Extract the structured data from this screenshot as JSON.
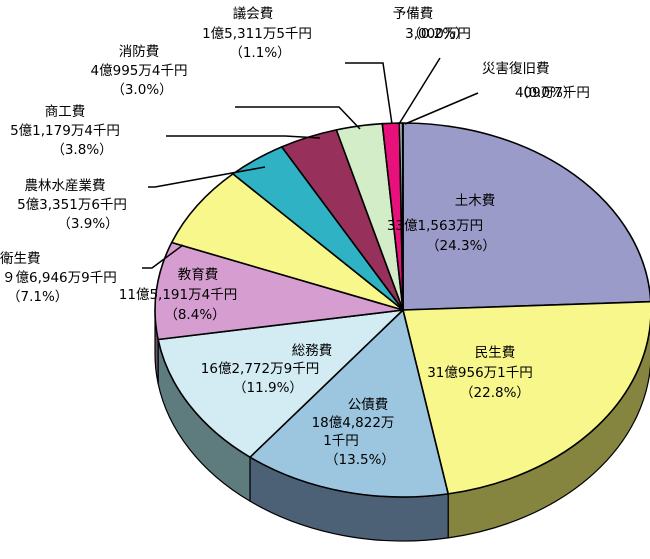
{
  "chart_data": {
    "type": "pie",
    "style": "3d",
    "slices": [
      {
        "name": "土木費",
        "amount": "33億1,563万円",
        "percent_label": "（24.3%）",
        "value": 24.3,
        "color": "#9b9bc9",
        "side_color": "#55557a"
      },
      {
        "name": "民生費",
        "amount": "31億956万1千円",
        "percent_label": "（22.8%）",
        "value": 22.8,
        "color": "#f7f78c",
        "side_color": "#85853f"
      },
      {
        "name": "公債費",
        "amount": "18億4,822万",
        "amount_line2": "1千円",
        "percent_label": "（13.5%）",
        "value": 13.5,
        "color": "#9cc6e0",
        "side_color": "#4d6176"
      },
      {
        "name": "総務費",
        "amount": "16億2,772万9千円",
        "percent_label": "（11.9%）",
        "value": 11.9,
        "color": "#d3ecf4",
        "side_color": "#5e7b7e"
      },
      {
        "name": "教育費",
        "amount": "11億5,191万4千円",
        "percent_label": "（8.4%）",
        "value": 8.4,
        "color": "#d69ed0",
        "side_color": "#6e4f6c"
      },
      {
        "name": "衛生費",
        "amount": "９億6,946万9千円",
        "percent_label": "（7.1%）",
        "value": 7.1,
        "color": "#f7f78c",
        "side_color": "#85853f"
      },
      {
        "name": "農林水産業費",
        "amount": "5億3,351万6千円",
        "percent_label": "（3.9%）",
        "value": 3.9,
        "color": "#2fb3c4",
        "side_color": "#1c6b75"
      },
      {
        "name": "商工費",
        "amount": "5億1,179万4千円",
        "percent_label": "（3.8%）",
        "value": 3.8,
        "color": "#98305c",
        "side_color": "#5c1d38"
      },
      {
        "name": "消防費",
        "amount": "4億995万4千円",
        "percent_label": "（3.0%）",
        "value": 3.0,
        "color": "#d3edc8",
        "side_color": "#7d8d76"
      },
      {
        "name": "議会費",
        "amount": "1億5,311万5千円",
        "percent_label": "（1.1%）",
        "value": 1.1,
        "color": "#e8107a",
        "side_color": "#8a0a48"
      },
      {
        "name": "予備費",
        "amount": "3,000万円",
        "percent_label": "（0.2%）",
        "value": 0.2,
        "color": "#d3ecf4",
        "side_color": "#5e7b7e"
      },
      {
        "name": "災害復旧費",
        "amount": "409万7千円",
        "percent_label": "（0.0%）",
        "value": 0.03,
        "color": "#9b9bc9",
        "side_color": "#55557a"
      }
    ]
  }
}
